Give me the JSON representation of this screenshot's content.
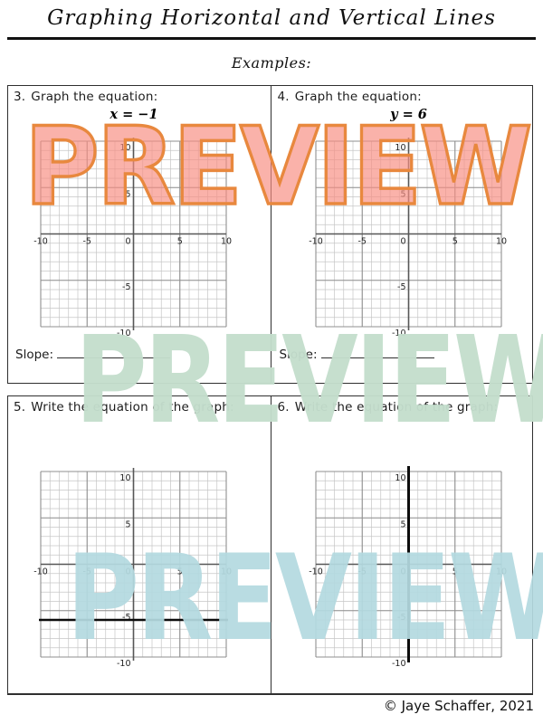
{
  "page": {
    "title": "Graphing Horizontal and Vertical Lines",
    "examples_label": "Examples:",
    "footer": "© Jaye Schaffer, 2021"
  },
  "problems": [
    {
      "number": "3.",
      "prompt": "Graph the equation:",
      "equation": "x = −1",
      "answer_label": "Slope:",
      "graph": {
        "line": null
      }
    },
    {
      "number": "4.",
      "prompt": "Graph the equation:",
      "equation": "y = 6",
      "answer_label": "Slope:",
      "graph": {
        "line": null
      }
    },
    {
      "number": "5.",
      "prompt": "Write the equation of the graph:",
      "graph": {
        "line": {
          "orientation": "horizontal",
          "value": -6
        }
      }
    },
    {
      "number": "6.",
      "prompt": "Write the equation of the graph:",
      "graph": {
        "line": {
          "orientation": "vertical",
          "value": 0
        }
      }
    }
  ],
  "graph_axes": {
    "min": -10,
    "max": 10,
    "grid_step": 1,
    "heavy_step": 5,
    "x_tick_labels": [
      -10,
      -5,
      0,
      5,
      10
    ],
    "y_tick_labels": [
      10,
      5,
      -5,
      -10
    ]
  },
  "graph_style": {
    "light": "#c6c6c6",
    "heavy": "#8f8f8f",
    "axis": "#575757",
    "line": "#0d0d0d",
    "label": "#222222"
  },
  "watermarks": {
    "top": {
      "text": "PREVIEW",
      "fill": "rgba(247,141,130,0.68)",
      "stroke": "#e8883e",
      "opacity": 1
    },
    "middle": {
      "text": "PREVIEW",
      "fill": "#c4decd",
      "stroke": null,
      "opacity": 0.96
    },
    "bottom": {
      "text": "PREVIEW",
      "fill": "#b4dae0",
      "stroke": null,
      "opacity": 0.93
    }
  }
}
